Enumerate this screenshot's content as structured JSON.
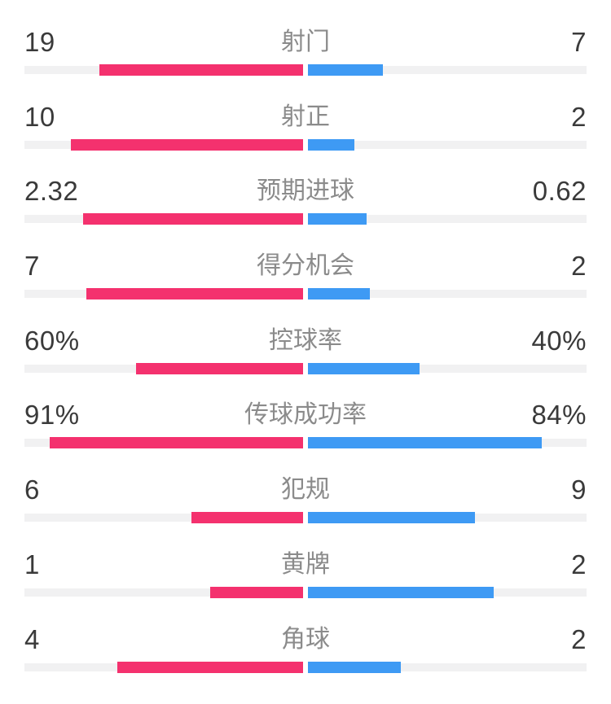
{
  "page": {
    "background": "#ffffff"
  },
  "colors": {
    "home_bar": "#f4316e",
    "away_bar": "#3e9af4",
    "track": "#f1f1f2",
    "value_text": "#3a3a3a",
    "label_text": "#8b8b8b"
  },
  "chart_data": {
    "type": "bar",
    "orientation": "horizontal-paired-from-center",
    "legend": "none",
    "grid": false,
    "categories": [
      "射门",
      "射正",
      "预期进球",
      "得分机会",
      "控球率",
      "传球成功率",
      "犯规",
      "黄牌",
      "角球"
    ],
    "series": [
      {
        "name": "home",
        "side": "left",
        "color": "#f4316e",
        "values": [
          "19",
          "10",
          "2.32",
          "7",
          "60%",
          "91%",
          "6",
          "1",
          "4"
        ]
      },
      {
        "name": "away",
        "side": "right",
        "color": "#3e9af4",
        "values": [
          "7",
          "2",
          "0.62",
          "2",
          "40%",
          "84%",
          "9",
          "2",
          "2"
        ]
      }
    ],
    "bar_scale_rule": "percent values fill value/100 of each half; count values fill value/(home+away) of each half"
  }
}
